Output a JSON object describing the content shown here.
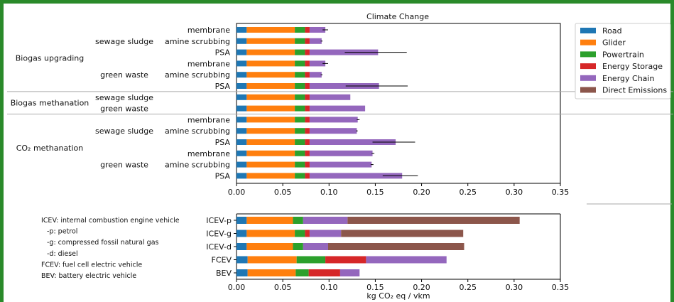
{
  "chart_data": [
    {
      "type": "bar",
      "orientation": "horizontal",
      "stacked": true,
      "title": "Climate Change",
      "xlim": [
        0,
        0.35
      ],
      "xticks": [
        "0.00",
        "0.05",
        "0.10",
        "0.15",
        "0.20",
        "0.25",
        "0.30",
        "0.35"
      ],
      "groups": [
        {
          "label": "Biogas upgrading",
          "subgroups": [
            {
              "label": "sewage sludge",
              "rows": [
                "membrane",
                "amine scrubbing",
                "PSA"
              ]
            },
            {
              "label": "green waste",
              "rows": [
                "membrane",
                "amine scrubbing",
                "PSA"
              ]
            }
          ]
        },
        {
          "label": "Biogas methanation",
          "subgroups": [
            {
              "label": "sewage sludge",
              "rows": [
                ""
              ]
            },
            {
              "label": "green waste",
              "rows": [
                ""
              ]
            }
          ]
        },
        {
          "label": "CO₂ methanation",
          "subgroups": [
            {
              "label": "sewage sludge",
              "rows": [
                "membrane",
                "amine scrubbing",
                "PSA"
              ]
            },
            {
              "label": "green waste",
              "rows": [
                "membrane",
                "amine scrubbing",
                "PSA"
              ]
            }
          ]
        }
      ],
      "series": [
        {
          "name": "Road",
          "color": "#1f77b4",
          "values": [
            0.011,
            0.011,
            0.011,
            0.011,
            0.011,
            0.011,
            0.011,
            0.011,
            0.011,
            0.011,
            0.011,
            0.011,
            0.011,
            0.011
          ]
        },
        {
          "name": "Glider",
          "color": "#ff7f0e",
          "values": [
            0.052,
            0.052,
            0.052,
            0.052,
            0.052,
            0.052,
            0.052,
            0.052,
            0.052,
            0.052,
            0.052,
            0.052,
            0.052,
            0.052
          ]
        },
        {
          "name": "Powertrain",
          "color": "#2ca02c",
          "values": [
            0.011,
            0.011,
            0.011,
            0.011,
            0.011,
            0.011,
            0.011,
            0.011,
            0.011,
            0.011,
            0.011,
            0.011,
            0.011,
            0.011
          ]
        },
        {
          "name": "Energy Storage",
          "color": "#d62728",
          "values": [
            0.005,
            0.005,
            0.005,
            0.005,
            0.005,
            0.005,
            0.005,
            0.005,
            0.005,
            0.005,
            0.005,
            0.005,
            0.005,
            0.005
          ]
        },
        {
          "name": "Energy Chain",
          "color": "#9467bd",
          "values": [
            0.017,
            0.013,
            0.074,
            0.017,
            0.013,
            0.075,
            0.044,
            0.06,
            0.052,
            0.051,
            0.093,
            0.068,
            0.067,
            0.1
          ]
        },
        {
          "name": "Direct Emissions",
          "color": "#8c564b",
          "values": [
            0,
            0,
            0,
            0,
            0,
            0,
            0,
            0,
            0,
            0,
            0,
            0,
            0,
            0
          ]
        }
      ],
      "totals": [
        0.096,
        0.092,
        0.153,
        0.096,
        0.092,
        0.154,
        0.123,
        0.139,
        0.131,
        0.13,
        0.172,
        0.147,
        0.146,
        0.179
      ],
      "error_low": [
        0.093,
        0.091,
        0.117,
        0.093,
        0.091,
        0.118,
        null,
        null,
        0.13,
        0.129,
        0.147,
        0.146,
        0.145,
        0.158
      ],
      "error_high": [
        0.099,
        0.093,
        0.184,
        0.099,
        0.093,
        0.185,
        null,
        null,
        0.133,
        0.131,
        0.193,
        0.149,
        0.148,
        0.196
      ],
      "legend": {
        "placement": "right",
        "entries": [
          "Road",
          "Glider",
          "Powertrain",
          "Energy Storage",
          "Energy Chain",
          "Direct Emissions"
        ]
      }
    },
    {
      "type": "bar",
      "orientation": "horizontal",
      "stacked": true,
      "categories": [
        "ICEV-p",
        "ICEV-g",
        "ICEV-d",
        "FCEV",
        "BEV"
      ],
      "xlabel": "kg CO₂ eq / vkm",
      "xlim": [
        0,
        0.35
      ],
      "xticks": [
        "0.00",
        "0.05",
        "0.10",
        "0.15",
        "0.20",
        "0.25",
        "0.30",
        "0.35"
      ],
      "series": [
        {
          "name": "Road",
          "color": "#1f77b4",
          "values": [
            0.011,
            0.011,
            0.011,
            0.012,
            0.012
          ]
        },
        {
          "name": "Glider",
          "color": "#ff7f0e",
          "values": [
            0.05,
            0.052,
            0.05,
            0.053,
            0.052
          ]
        },
        {
          "name": "Powertrain",
          "color": "#2ca02c",
          "values": [
            0.011,
            0.011,
            0.011,
            0.031,
            0.014
          ]
        },
        {
          "name": "Energy Storage",
          "color": "#d62728",
          "values": [
            0,
            0.005,
            0,
            0.044,
            0.034
          ]
        },
        {
          "name": "Energy Chain",
          "color": "#9467bd",
          "values": [
            0.048,
            0.034,
            0.027,
            0.087,
            0.021
          ]
        },
        {
          "name": "Direct Emissions",
          "color": "#8c564b",
          "values": [
            0.186,
            0.132,
            0.147,
            0,
            0
          ]
        }
      ]
    }
  ],
  "notes": [
    "ICEV: internal combustion engine vehicle",
    "-p: petrol",
    "-g: compressed fossil natural gas",
    "-d: diesel",
    "FCEV: fuel cell electric vehicle",
    "BEV: battery electric vehicle"
  ],
  "colors": {
    "frame": "#2a8a2a"
  }
}
